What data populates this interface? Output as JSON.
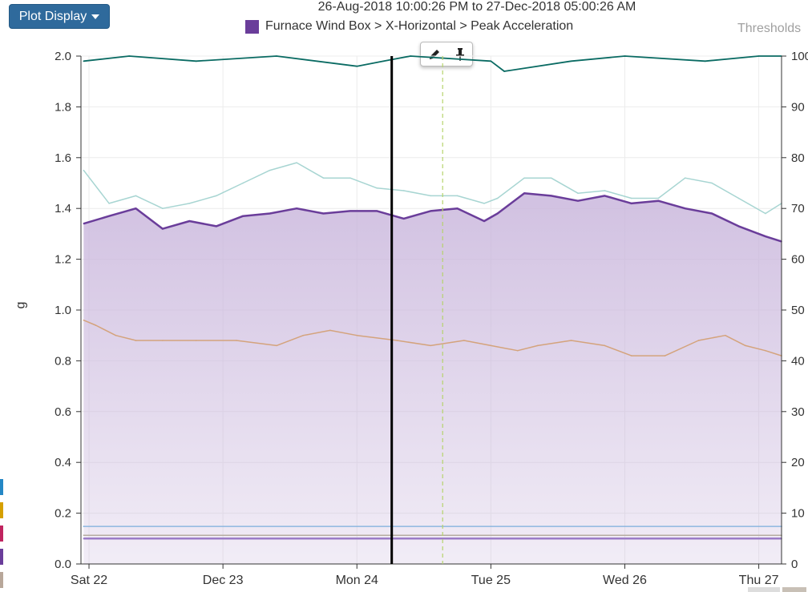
{
  "toolbar": {
    "plot_display_label": "Plot Display"
  },
  "header": {
    "range_text": "26-Aug-2018 10:00:26 PM to 27-Dec-2018 05:00:26 AM",
    "thresholds_label": "Thresholds"
  },
  "legend": {
    "label": "Furnace Wind Box > X-Horizontal > Peak Acceleration"
  },
  "yaxis": {
    "label": "g"
  },
  "colors": {
    "primary_series": "#6a3d9a",
    "primary_fill": "#c9b6dc",
    "top_series": "#0a6b63",
    "light_series": "#a7d5d2",
    "temperature_series": "#d4a37c",
    "blue_threshold": "#7aaedc",
    "gray_line": "#b5aca0",
    "button": "#2f6a9c",
    "cursor_line": "#000000",
    "dashed_marker": "#b5d36b",
    "edge_swatches": [
      "#2487c5",
      "#d6a000",
      "#c0245f",
      "#6a3d9a",
      "#b8a79a"
    ]
  },
  "chart_data": {
    "type": "line",
    "xlabel": "",
    "ylabel": "g",
    "ylim": [
      0,
      2.0
    ],
    "y2lim": [
      0,
      100
    ],
    "x_ticks": [
      "Sat 22",
      "Dec 23",
      "Mon 24",
      "Tue 25",
      "Wed 26",
      "Thu 27"
    ],
    "y_ticks": [
      "0.0",
      "0.2",
      "0.4",
      "0.6",
      "0.8",
      "1.0",
      "1.2",
      "1.4",
      "1.6",
      "1.8",
      "2.0"
    ],
    "y2_ticks": [
      "0",
      "10",
      "20",
      "30",
      "40",
      "50",
      "60",
      "70",
      "80",
      "90",
      "100"
    ],
    "x_range_days": [
      21.94,
      27.17
    ],
    "grid": true,
    "cursor_x": 24.26,
    "marker_x": 24.64,
    "series": [
      {
        "name": "Furnace Wind Box > X-Horizontal > Peak Acceleration",
        "axis": "left",
        "x": [
          21.96,
          22.15,
          22.35,
          22.55,
          22.75,
          22.95,
          23.15,
          23.35,
          23.55,
          23.75,
          23.95,
          24.15,
          24.35,
          24.55,
          24.75,
          24.95,
          25.05,
          25.25,
          25.45,
          25.65,
          25.85,
          26.05,
          26.25,
          26.45,
          26.65,
          26.85,
          27.05,
          27.17
        ],
        "values": [
          1.34,
          1.37,
          1.4,
          1.32,
          1.35,
          1.33,
          1.37,
          1.38,
          1.4,
          1.38,
          1.39,
          1.39,
          1.36,
          1.39,
          1.4,
          1.35,
          1.38,
          1.46,
          1.45,
          1.43,
          1.45,
          1.42,
          1.43,
          1.4,
          1.38,
          1.33,
          1.29,
          1.27
        ]
      },
      {
        "axis": "left",
        "x": [
          21.96,
          22.15,
          22.35,
          22.55,
          22.75,
          22.95,
          23.15,
          23.35,
          23.55,
          23.75,
          23.95,
          24.15,
          24.35,
          24.55,
          24.75,
          24.95,
          25.05,
          25.25,
          25.45,
          25.65,
          25.85,
          26.05,
          26.25,
          26.45,
          26.65,
          26.85,
          27.05,
          27.17
        ],
        "values": [
          1.55,
          1.42,
          1.45,
          1.4,
          1.42,
          1.45,
          1.5,
          1.55,
          1.58,
          1.52,
          1.52,
          1.48,
          1.47,
          1.45,
          1.45,
          1.42,
          1.44,
          1.52,
          1.52,
          1.46,
          1.47,
          1.44,
          1.44,
          1.52,
          1.5,
          1.44,
          1.38,
          1.42
        ]
      },
      {
        "axis": "right",
        "x": [
          21.96,
          22.05,
          22.2,
          22.35,
          22.55,
          22.8,
          23.1,
          23.4,
          23.6,
          23.8,
          24.0,
          24.3,
          24.55,
          24.8,
          25.0,
          25.2,
          25.35,
          25.6,
          25.85,
          26.05,
          26.3,
          26.55,
          26.75,
          26.9,
          27.05,
          27.17
        ],
        "values": [
          48,
          47,
          45,
          44,
          44,
          44,
          44,
          43,
          45,
          46,
          45,
          44,
          43,
          44,
          43,
          42,
          43,
          44,
          43,
          41,
          41,
          44,
          45,
          43,
          42,
          41
        ]
      },
      {
        "axis": "right",
        "x": [
          21.96,
          22.3,
          22.8,
          23.4,
          24.0,
          24.2,
          24.4,
          25.0,
          25.1,
          25.6,
          26.0,
          26.6,
          27.0,
          27.17
        ],
        "values": [
          99,
          100,
          99,
          100,
          98,
          99,
          100,
          99,
          97,
          99,
          100,
          99,
          100,
          100
        ]
      },
      {
        "axis": "left",
        "x": [
          21.96,
          27.17
        ],
        "values": [
          0.148,
          0.148
        ]
      },
      {
        "axis": "left",
        "x": [
          21.96,
          27.17
        ],
        "values": [
          0.113,
          0.113
        ]
      },
      {
        "axis": "left",
        "x": [
          21.96,
          27.17
        ],
        "values": [
          0.1,
          0.1
        ]
      }
    ]
  }
}
